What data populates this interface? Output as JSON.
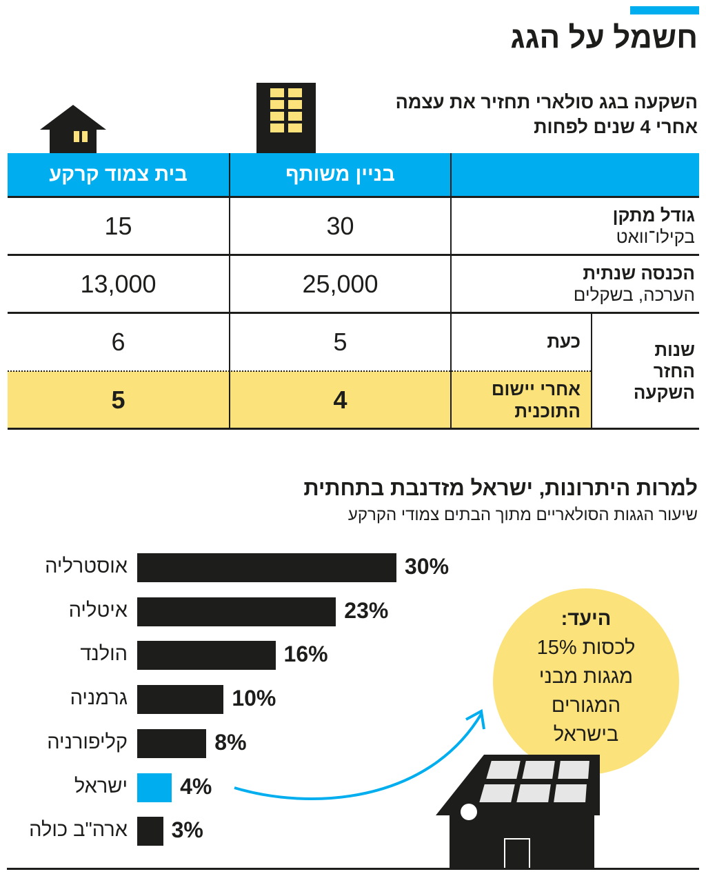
{
  "header": {
    "title": "חשמל על הגג",
    "subtitle_line1": "השקעה בגג סולארי תחזיר את עצמה",
    "subtitle_line2": "אחרי 4 שנים לפחות",
    "accent_color": "#00aeef"
  },
  "table": {
    "columns": [
      "בניין משותף",
      "בית צמוד קרקע"
    ],
    "rows": {
      "size": {
        "label": "גודל מתקן",
        "unit": "בקילו־וואט",
        "building": "30",
        "house": "15"
      },
      "income": {
        "label": "הכנסה שנתית",
        "unit": "הערכה, בשקלים",
        "building": "25,000",
        "house": "13,000"
      },
      "payback": {
        "group_label_1": "שנות",
        "group_label_2": "החזר",
        "group_label_3": "השקעה",
        "now": {
          "label": "כעת",
          "building": "5",
          "house": "6"
        },
        "after": {
          "label_1": "אחרי יישום",
          "label_2": "התוכנית",
          "building": "4",
          "house": "5"
        }
      }
    },
    "highlight_color": "#fbe27a"
  },
  "section2": {
    "title": "למרות היתרונות, ישראל מזדנבת בתחתית",
    "subtitle": "שיעור הגגות הסולאריים מתוך הבתים צמודי הקרקע"
  },
  "chart_data": {
    "type": "bar",
    "orientation": "horizontal",
    "title": "למרות היתרונות, ישראל מזדנבת בתחתית",
    "subtitle": "שיעור הגגות הסולאריים מתוך הבתים צמודי הקרקע",
    "unit": "%",
    "categories": [
      "אוסטרליה",
      "איטליה",
      "הולנד",
      "גרמניה",
      "קליפורניה",
      "ישראל",
      "ארה\"ב כולה"
    ],
    "values": [
      30,
      23,
      16,
      10,
      8,
      4,
      3
    ],
    "value_labels": [
      "30%",
      "23%",
      "16%",
      "10%",
      "8%",
      "4%",
      "3%"
    ],
    "highlight_category": "ישראל",
    "bar_color": "#1d1d1b",
    "highlight_color": "#00aeef",
    "xlim": [
      0,
      30
    ]
  },
  "goal": {
    "title": "היעד:",
    "line1": "לכסות 15%",
    "line2": "מגגות מבני",
    "line3": "המגורים",
    "line4": "בישראל"
  }
}
